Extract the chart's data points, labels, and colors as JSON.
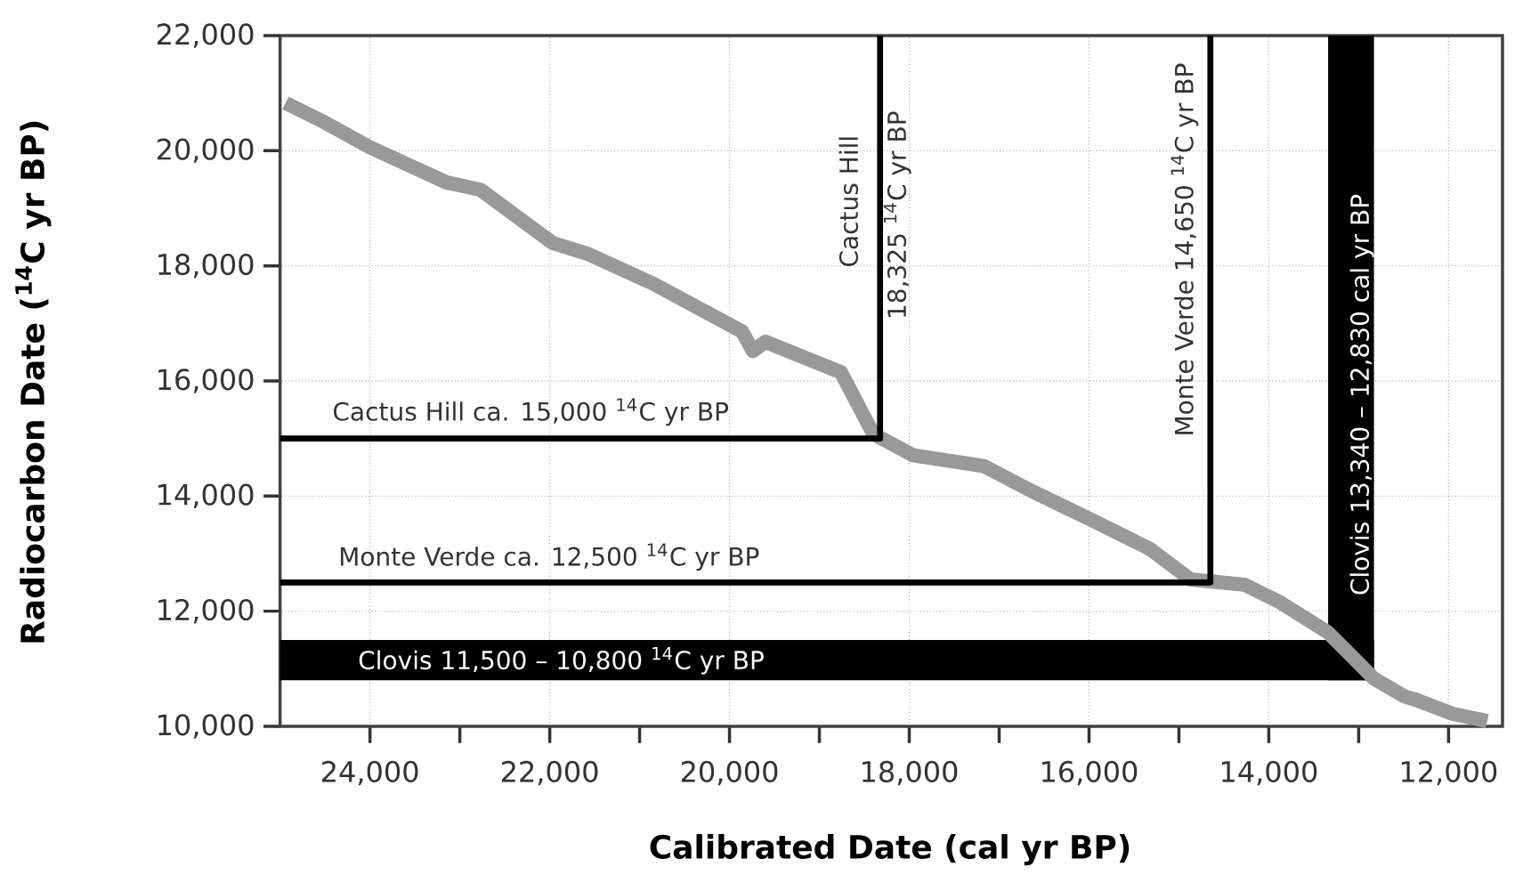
{
  "chart_data": {
    "type": "line",
    "xlabel": "Calibrated Date (cal yr BP)",
    "ylabel": "Radiocarbon Date ($^{14}$C yr BP)",
    "xlim": [
      25000,
      11400
    ],
    "ylim": [
      10000,
      22000
    ],
    "xticks": [
      {
        "value": 24000,
        "label": "24,000"
      },
      {
        "value": 23000,
        "label": null
      },
      {
        "value": 22000,
        "label": "22,000"
      },
      {
        "value": 21000,
        "label": null
      },
      {
        "value": 20000,
        "label": "20,000"
      },
      {
        "value": 19000,
        "label": null
      },
      {
        "value": 18000,
        "label": "18,000"
      },
      {
        "value": 17000,
        "label": null
      },
      {
        "value": 16000,
        "label": "16,000"
      },
      {
        "value": 15000,
        "label": null
      },
      {
        "value": 14000,
        "label": "14,000"
      },
      {
        "value": 13000,
        "label": null
      },
      {
        "value": 12000,
        "label": "12,000"
      }
    ],
    "yticks": [
      {
        "value": 10000,
        "label": "10,000"
      },
      {
        "value": 12000,
        "label": "12,000"
      },
      {
        "value": 14000,
        "label": "14,000"
      },
      {
        "value": 16000,
        "label": "16,000"
      },
      {
        "value": 18000,
        "label": "18,000"
      },
      {
        "value": 20000,
        "label": "20,000"
      },
      {
        "value": 22000,
        "label": "22,000"
      }
    ],
    "grid": true,
    "series": [
      {
        "color": "#999999",
        "x": [
          24940,
          24550,
          24000,
          23150,
          22770,
          21970,
          21580,
          20850,
          19860,
          19740,
          19600,
          18760,
          18400,
          17960,
          17170,
          16640,
          15990,
          15320,
          14870,
          14270,
          13870,
          13340,
          12830,
          12490,
          12360,
          11960,
          11570
        ],
        "values": [
          20830,
          20530,
          20060,
          19450,
          19320,
          18400,
          18210,
          17690,
          16860,
          16520,
          16680,
          16150,
          15080,
          14710,
          14520,
          14090,
          13600,
          13080,
          12550,
          12460,
          12150,
          11630,
          10830,
          10520,
          10460,
          10220,
          10090
        ]
      },
      {
        "color": "#000000",
        "x": [
          25000,
          18325,
          18325
        ],
        "values": [
          15000,
          15000,
          22000
        ]
      },
      {
        "color": "#000000",
        "x": [
          25000,
          14650,
          14650
        ],
        "values": [
          12500,
          12500,
          22000
        ]
      }
    ],
    "bands": [
      {
        "axis": "y",
        "from": 10800,
        "to": 11500,
        "color": "#000000"
      },
      {
        "axis": "x",
        "from": 13340,
        "to": 12830,
        "color": "#000000"
      }
    ],
    "annotations": [
      "Cactus Hill ca. 15,000 $^{14}$C yr BP",
      "Monte Verde ca. 12,500 $^{14}$C yr BP",
      "Clovis 11,500 – 10,800 $^{14}$C yr BP",
      "Cactus Hill",
      "18,325 $^{14}$C yr BP",
      "Monte Verde 14,650 $^{14}$C yr BP",
      "Clovis 13,340 – 12,830 cal yr BP"
    ]
  }
}
